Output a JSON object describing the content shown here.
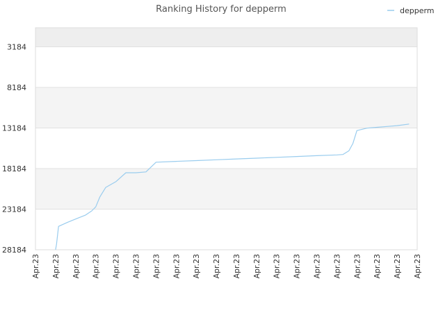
{
  "chart_data": {
    "type": "line",
    "title": "Ranking History for depperm",
    "xlabel": "",
    "ylabel": "",
    "y_inverted": true,
    "ylim": [
      28184,
      838
    ],
    "yticks": [
      3184,
      8184,
      13184,
      18184,
      23184,
      28184
    ],
    "ytick_labels": [
      "3184",
      "8184",
      "13184",
      "18184",
      "23184",
      "28184"
    ],
    "xtick_labels": [
      "Apr.23",
      "Apr.23",
      "Apr.23",
      "Apr.23",
      "Apr.23",
      "Apr.23",
      "Apr.23",
      "Apr.23",
      "Apr.23",
      "Apr.23",
      "Apr.23",
      "Apr.23",
      "Apr.23",
      "Apr.23",
      "Apr.23",
      "Apr.23",
      "Apr.23",
      "Apr.23",
      "Apr.23",
      "Apr.23"
    ],
    "x_range": [
      0,
      19
    ],
    "grid": true,
    "legend_position": "top-right",
    "series": [
      {
        "name": "depperm",
        "color": "#99ccee",
        "x": [
          1.0,
          1.05,
          1.15,
          1.6,
          2.0,
          2.5,
          2.8,
          3.0,
          3.2,
          3.5,
          4.0,
          4.5,
          5.0,
          5.5,
          6.0,
          7.0,
          8.0,
          9.0,
          10.0,
          11.0,
          12.0,
          13.0,
          14.0,
          15.0,
          15.3,
          15.6,
          15.8,
          16.0,
          16.5,
          17.0,
          17.5,
          18.0,
          18.6
        ],
        "y": [
          28184,
          27500,
          25300,
          24800,
          24400,
          23900,
          23400,
          22900,
          21700,
          20500,
          19800,
          18700,
          18700,
          18600,
          17400,
          17300,
          17200,
          17100,
          17000,
          16900,
          16800,
          16700,
          16600,
          16500,
          16450,
          16000,
          15100,
          13500,
          13200,
          13100,
          13000,
          12900,
          12700
        ]
      }
    ]
  }
}
